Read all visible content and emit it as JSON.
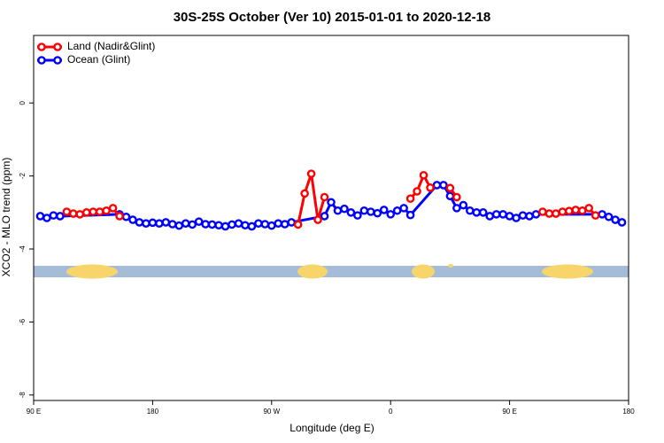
{
  "chart_data": {
    "type": "line",
    "title": "30S-25S October (Ver 10)   2015-01-01 to 2020-12-18",
    "x_label": "Longitude (deg E)",
    "y_label": "XCO2 - MLO trend (ppm)",
    "xlim": [
      90,
      540
    ],
    "ylim": [
      -8.15,
      1.85
    ],
    "xticks": [
      {
        "value": 90,
        "label": "90 E"
      },
      180,
      {
        "value": 270,
        "label": "90 W"
      },
      {
        "value": 360,
        "label": "0"
      },
      {
        "value": 450,
        "label": "90 E"
      },
      {
        "value": 540,
        "label": "180"
      }
    ],
    "yticks": [
      0,
      -2,
      -4,
      -6,
      -8
    ],
    "legend": "top-left",
    "series": [
      {
        "name": "Ocean (Glint)",
        "color": "#0000ff",
        "x": [
          95,
          100,
          105,
          110,
          155,
          160,
          165,
          170,
          175,
          180,
          185,
          190,
          195,
          200,
          205,
          210,
          215,
          220,
          225,
          230,
          235,
          240,
          245,
          250,
          255,
          260,
          265,
          270,
          275,
          280,
          285,
          310,
          315,
          320,
          325,
          330,
          335,
          340,
          345,
          350,
          355,
          360,
          365,
          370,
          375,
          395,
          400,
          405,
          410,
          415,
          420,
          425,
          430,
          435,
          440,
          445,
          450,
          455,
          460,
          465,
          470,
          520,
          525,
          530,
          535
        ],
        "values": [
          -3.1,
          -3.15,
          -3.08,
          -3.1,
          -3.05,
          -3.12,
          -3.2,
          -3.27,
          -3.3,
          -3.28,
          -3.3,
          -3.27,
          -3.32,
          -3.36,
          -3.3,
          -3.33,
          -3.25,
          -3.32,
          -3.33,
          -3.35,
          -3.38,
          -3.33,
          -3.3,
          -3.35,
          -3.38,
          -3.3,
          -3.32,
          -3.36,
          -3.3,
          -3.32,
          -3.27,
          -3.1,
          -2.72,
          -2.95,
          -2.9,
          -3.0,
          -3.08,
          -2.95,
          -2.98,
          -3.02,
          -2.93,
          -3.05,
          -2.95,
          -2.88,
          -3.07,
          -2.25,
          -2.25,
          -2.55,
          -2.88,
          -2.8,
          -2.95,
          -3.0,
          -3.0,
          -3.1,
          -3.05,
          -3.05,
          -3.1,
          -3.15,
          -3.08,
          -3.1,
          -3.05,
          -3.05,
          -3.12,
          -3.2,
          -3.27
        ]
      },
      {
        "name": "Land (Nadir&Glint)",
        "color": "#ff0000",
        "x": [
          115,
          120,
          125,
          130,
          135,
          140,
          145,
          150,
          155,
          160,
          290,
          295,
          300,
          305,
          310,
          315,
          375,
          380,
          385,
          390,
          395,
          405,
          410,
          415,
          475,
          480,
          485,
          490,
          495,
          500,
          505,
          510,
          515
        ],
        "values": [
          -2.98,
          -3.03,
          -3.05,
          -3.0,
          -2.98,
          -2.98,
          -2.95,
          -2.88,
          -3.1,
          null,
          -3.33,
          -2.48,
          -1.94,
          -3.2,
          -2.58,
          null,
          -2.62,
          -2.42,
          -1.98,
          -2.32,
          null,
          -2.33,
          -2.58,
          null,
          -2.98,
          -3.03,
          -3.03,
          -2.98,
          -2.96,
          -2.93,
          -2.95,
          -2.88,
          -3.08
        ]
      }
    ]
  }
}
